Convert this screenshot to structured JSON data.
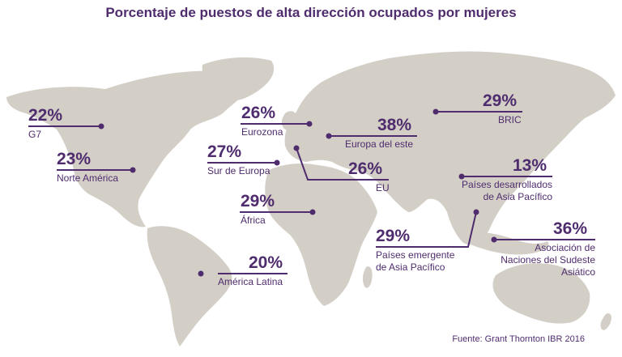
{
  "title": "Porcentaje de puestos de alta dirección ocupados por mujeres",
  "source": "Fuente: Grant Thornton IBR 2016",
  "colors": {
    "accent": "#4f2c6e",
    "land": "#d3cfc7",
    "background": "#ffffff"
  },
  "regions": [
    {
      "id": "g7",
      "value": "22%",
      "label": "G7"
    },
    {
      "id": "norte-america",
      "value": "23%",
      "label": "Norte América"
    },
    {
      "id": "eurozona",
      "value": "26%",
      "label": "Eurozona"
    },
    {
      "id": "sur-europa",
      "value": "27%",
      "label": "Sur de Europa"
    },
    {
      "id": "africa",
      "value": "29%",
      "label": "África"
    },
    {
      "id": "america-latina",
      "value": "20%",
      "label": "América Latina"
    },
    {
      "id": "europa-este",
      "value": "38%",
      "label": "Europa del este"
    },
    {
      "id": "eu",
      "value": "26%",
      "label": "EU"
    },
    {
      "id": "bric",
      "value": "29%",
      "label": "BRIC"
    },
    {
      "id": "asia-desarrollados",
      "value": "13%",
      "label_lines": [
        "Países desarrollados",
        "de Asia Pacífico"
      ]
    },
    {
      "id": "asia-emergente",
      "value": "29%",
      "label_lines": [
        "Países emergente",
        "de Asia Pacífico"
      ]
    },
    {
      "id": "asean",
      "value": "36%",
      "label_lines": [
        "Asociación de",
        "Naciones del Sudeste",
        "Asiático"
      ]
    }
  ]
}
